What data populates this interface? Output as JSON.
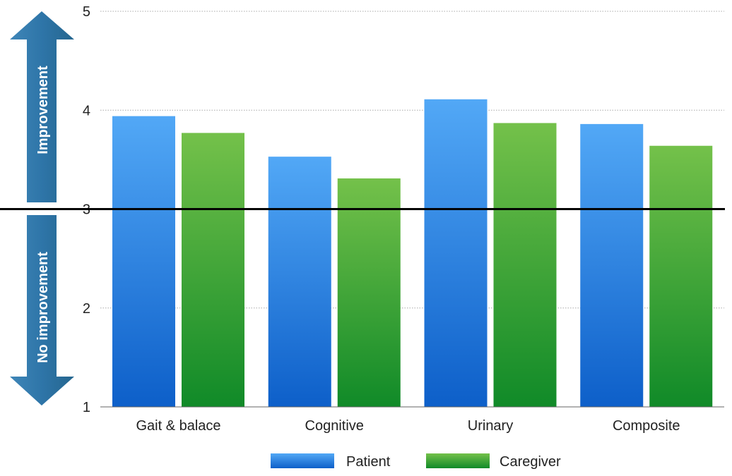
{
  "chart_data": {
    "type": "bar",
    "categories": [
      "Gait & balace",
      "Cognitive",
      "Urinary",
      "Composite"
    ],
    "series": [
      {
        "name": "Patient",
        "values": [
          3.94,
          3.53,
          4.11,
          3.86
        ],
        "color": "#2f86e0"
      },
      {
        "name": "Caregiver",
        "values": [
          3.77,
          3.31,
          3.87,
          3.64
        ],
        "color": "#3a9e3a"
      }
    ],
    "ylim": [
      1,
      5
    ],
    "yticks": [
      1,
      2,
      3,
      4,
      5
    ],
    "ytick_labels": [
      "1",
      "2",
      "3",
      "4",
      "5"
    ],
    "reference_line": 3,
    "grid": true,
    "legend_position": "bottom-center",
    "annotations": {
      "up": "Improvement",
      "down": "No improvement"
    }
  }
}
